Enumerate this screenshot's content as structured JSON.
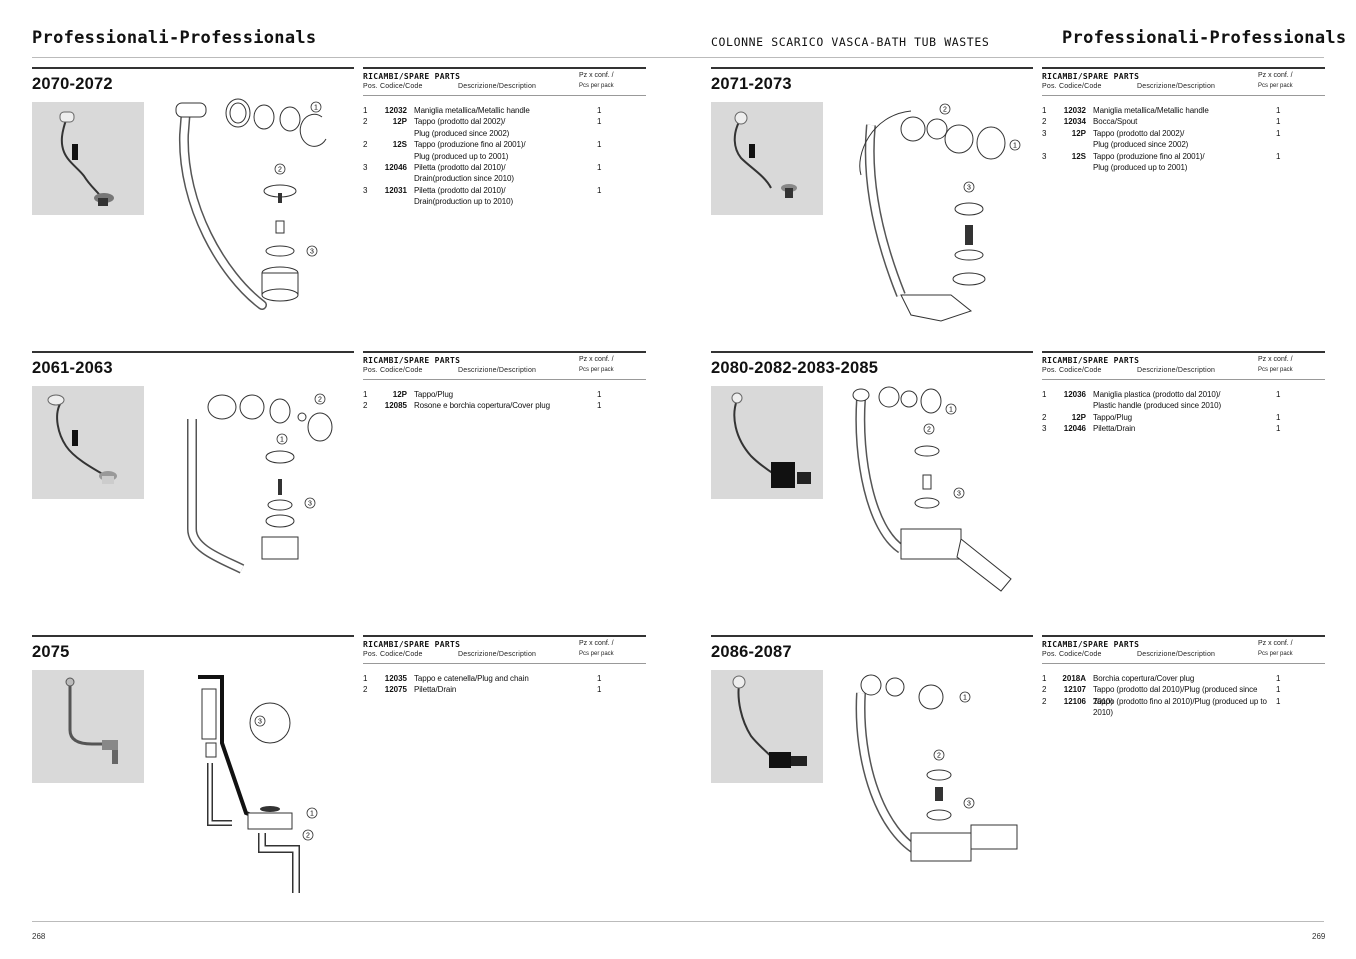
{
  "header": {
    "left_title": "Professionali-Professionals",
    "center_title": "COLONNE SCARICO VASCA-BATH TUB WASTES",
    "right_title": "Professionali-Professionals"
  },
  "footer": {
    "page_left": "268",
    "page_right": "269"
  },
  "table_labels": {
    "title": "RICAMBI/SPARE PARTS",
    "pz_conf": "Pz x conf. /",
    "pos_code": "Pos. Codice/Code",
    "description": "Descrizione/Description",
    "pcs_per_pack": "Pcs per pack"
  },
  "sections": [
    {
      "model": "2070-2072",
      "parts": [
        {
          "pos": "1",
          "code": "12032",
          "desc": "Maniglia metallica/Metallic handle",
          "qty": "1"
        },
        {
          "pos": "2",
          "code": "12P",
          "desc": "Tappo (prodotto dal 2002)/\nPlug (produced since 2002)",
          "qty": "1"
        },
        {
          "pos": "2",
          "code": "12S",
          "desc": "Tappo (produzione fino al 2001)/\nPlug (produced up to 2001)",
          "qty": "1"
        },
        {
          "pos": "3",
          "code": "12046",
          "desc": "Piletta (prodotto dal 2010)/\nDrain(production since 2010)",
          "qty": "1"
        },
        {
          "pos": "3",
          "code": "12031",
          "desc": "Piletta (prodotto dal 2010)/\nDrain(production up to 2010)",
          "qty": "1"
        }
      ]
    },
    {
      "model": "2071-2073",
      "parts": [
        {
          "pos": "1",
          "code": "12032",
          "desc": "Maniglia metallica/Metallic handle",
          "qty": "1"
        },
        {
          "pos": "2",
          "code": "12034",
          "desc": "Bocca/Spout",
          "qty": "1"
        },
        {
          "pos": "3",
          "code": "12P",
          "desc": "Tappo (prodotto dal 2002)/\nPlug (produced since 2002)",
          "qty": "1"
        },
        {
          "pos": "3",
          "code": "12S",
          "desc": "Tappo (produzione fino al 2001)/\nPlug (produced up to 2001)",
          "qty": "1"
        }
      ]
    },
    {
      "model": "2061-2063",
      "parts": [
        {
          "pos": "1",
          "code": "12P",
          "desc": "Tappo/Plug",
          "qty": "1"
        },
        {
          "pos": "2",
          "code": "12085",
          "desc": "Rosone e borchia copertura/Cover plug",
          "qty": "1"
        }
      ]
    },
    {
      "model": "2080-2082-2083-2085",
      "parts": [
        {
          "pos": "1",
          "code": "12036",
          "desc": "Maniglia plastica (prodotto dal 2010)/\nPlastic handle (produced since 2010)",
          "qty": "1"
        },
        {
          "pos": "2",
          "code": "12P",
          "desc": "Tappo/Plug",
          "qty": "1"
        },
        {
          "pos": "3",
          "code": "12046",
          "desc": "Piletta/Drain",
          "qty": "1"
        }
      ]
    },
    {
      "model": "2075",
      "parts": [
        {
          "pos": "1",
          "code": "12035",
          "desc": "Tappo e catenella/Plug and chain",
          "qty": "1"
        },
        {
          "pos": "2",
          "code": "12075",
          "desc": "Piletta/Drain",
          "qty": "1"
        }
      ]
    },
    {
      "model": "2086-2087",
      "parts": [
        {
          "pos": "1",
          "code": "2018A",
          "desc": "Borchia copertura/Cover plug",
          "qty": "1"
        },
        {
          "pos": "2",
          "code": "12107",
          "desc": "Tappo (prodotto dal 2010)/Plug (produced since 2010)",
          "qty": "1"
        },
        {
          "pos": "2",
          "code": "12106",
          "desc": "Tappo (prodotto fino al 2010)/Plug (produced up to 2010)",
          "qty": "1"
        }
      ]
    }
  ],
  "callouts": [
    "1",
    "2",
    "3"
  ]
}
